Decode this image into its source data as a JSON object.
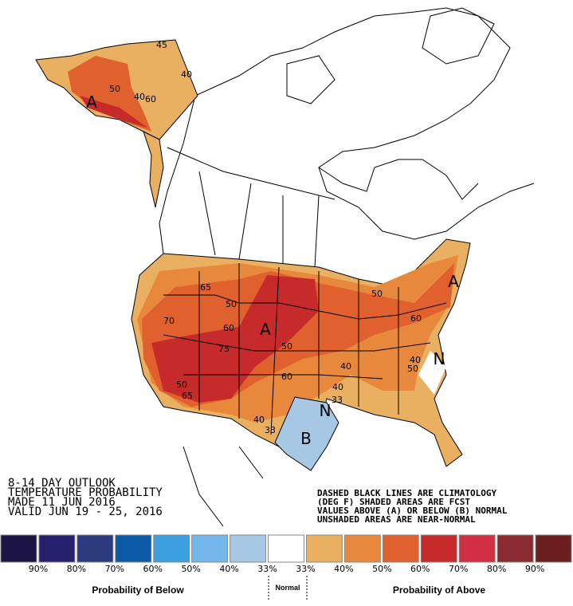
{
  "outlook": {
    "lines": [
      "8-14 DAY OUTLOOK",
      "TEMPERATURE PROBABILITY",
      "MADE  11 JUN 2016",
      "VALID  JUN 19 - 25, 2016"
    ]
  },
  "note": {
    "lines": [
      "DASHED BLACK LINES ARE CLIMATOLOGY",
      "(DEG F) SHADED AREAS ARE FCST",
      "VALUES ABOVE (A) OR BELOW (B) NORMAL",
      "UNSHADED AREAS ARE NEAR-NORMAL"
    ]
  },
  "map_labels": {
    "alaska_above": "A",
    "central_above": "A",
    "northeast_above": "A",
    "texas_below": "B",
    "gulf_normal": "N",
    "carolina_normal": "N",
    "contours": [
      "50",
      "40",
      "60",
      "45",
      "40",
      "65",
      "50",
      "70",
      "60",
      "75",
      "50",
      "60",
      "50",
      "40",
      "33",
      "40",
      "33",
      "60",
      "65",
      "50",
      "40",
      "50",
      "40"
    ]
  },
  "legend": {
    "colors": [
      "#1c1445",
      "#25206b",
      "#2c3b7c",
      "#0b5ba8",
      "#3c9fe0",
      "#74b7ea",
      "#a6c8e4",
      "#ffffff",
      "#e9b062",
      "#e8883c",
      "#e0602e",
      "#c62a2a",
      "#d12f42",
      "#8b2b31",
      "#6a1e1e"
    ],
    "labels": [
      "90%",
      "80%",
      "70%",
      "60%",
      "50%",
      "40%",
      "33%",
      "33%",
      "40%",
      "50%",
      "60%",
      "70%",
      "80%",
      "90%"
    ],
    "below_caption": "Probability of Below",
    "normal_caption": "Normal",
    "above_caption": "Probability of Above"
  }
}
